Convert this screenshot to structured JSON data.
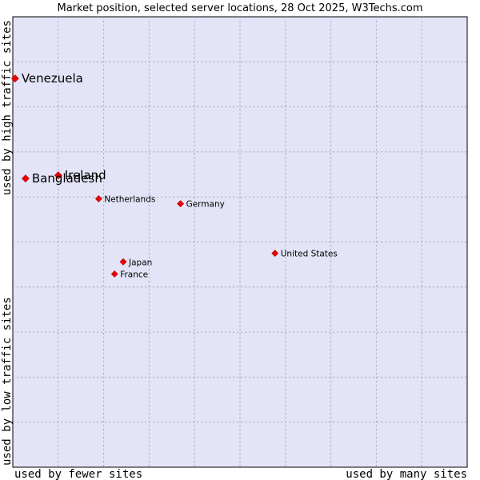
{
  "chart_data": {
    "type": "scatter",
    "title": "Market position, selected server locations, 28 Oct 2025, W3Techs.com",
    "xlabel_left": "used by fewer sites",
    "xlabel_right": "used by many sites",
    "ylabel_top": "used by high traffic sites",
    "ylabel_bottom": "used by low traffic sites",
    "xlim": [
      0,
      100
    ],
    "ylim": [
      0,
      100
    ],
    "grid": true,
    "point_color": "#ee0000",
    "plot_background": "#e4e4f8",
    "points": [
      {
        "label": "Venezuela",
        "x": 0.5,
        "y": 86.3,
        "size": "large"
      },
      {
        "label": "Ireland",
        "x": 10.0,
        "y": 64.8,
        "size": "large"
      },
      {
        "label": "Bangladesh",
        "x": 2.8,
        "y": 64.1,
        "size": "large"
      },
      {
        "label": "Netherlands",
        "x": 18.9,
        "y": 59.6,
        "size": "small"
      },
      {
        "label": "Germany",
        "x": 36.9,
        "y": 58.5,
        "size": "small"
      },
      {
        "label": "United States",
        "x": 57.7,
        "y": 47.5,
        "size": "small"
      },
      {
        "label": "Japan",
        "x": 24.3,
        "y": 45.6,
        "size": "small"
      },
      {
        "label": "France",
        "x": 22.4,
        "y": 42.9,
        "size": "small"
      }
    ]
  }
}
